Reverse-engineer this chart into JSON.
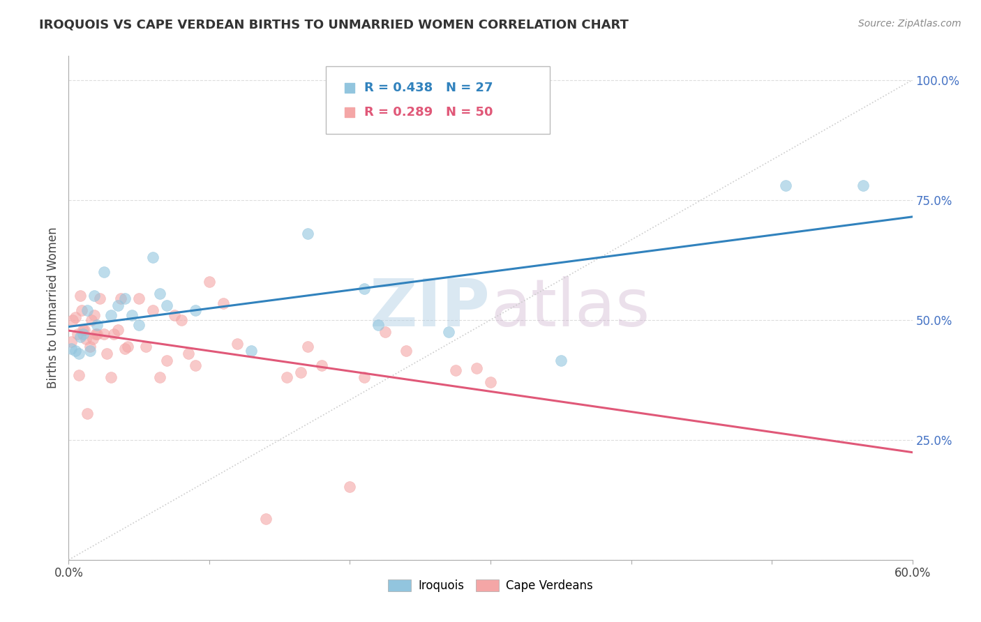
{
  "title": "IROQUOIS VS CAPE VERDEAN BIRTHS TO UNMARRIED WOMEN CORRELATION CHART",
  "source": "Source: ZipAtlas.com",
  "ylabel": "Births to Unmarried Women",
  "xlim": [
    0.0,
    0.6
  ],
  "ylim": [
    0.0,
    1.05
  ],
  "watermark_zip": "ZIP",
  "watermark_atlas": "atlas",
  "iroquois_color": "#92c5de",
  "capeverdean_color": "#f4a6a6",
  "iroquois_line_color": "#3182bd",
  "capeverdean_line_color": "#e05878",
  "diagonal_color": "#cccccc",
  "background_color": "#ffffff",
  "grid_color": "#dddddd",
  "iroquois_x": [
    0.002,
    0.005,
    0.007,
    0.008,
    0.01,
    0.013,
    0.015,
    0.018,
    0.02,
    0.025,
    0.03,
    0.035,
    0.04,
    0.045,
    0.05,
    0.06,
    0.065,
    0.07,
    0.09,
    0.13,
    0.17,
    0.21,
    0.22,
    0.27,
    0.35,
    0.51,
    0.565
  ],
  "iroquois_y": [
    0.44,
    0.435,
    0.43,
    0.465,
    0.47,
    0.52,
    0.435,
    0.55,
    0.49,
    0.6,
    0.51,
    0.53,
    0.545,
    0.51,
    0.49,
    0.63,
    0.555,
    0.53,
    0.52,
    0.435,
    0.68,
    0.565,
    0.49,
    0.475,
    0.415,
    0.78,
    0.78
  ],
  "capeverdean_x": [
    0.002,
    0.003,
    0.005,
    0.006,
    0.007,
    0.008,
    0.009,
    0.01,
    0.011,
    0.012,
    0.013,
    0.015,
    0.016,
    0.017,
    0.018,
    0.019,
    0.02,
    0.022,
    0.025,
    0.027,
    0.03,
    0.032,
    0.035,
    0.037,
    0.04,
    0.042,
    0.05,
    0.055,
    0.06,
    0.065,
    0.07,
    0.075,
    0.08,
    0.085,
    0.09,
    0.1,
    0.11,
    0.12,
    0.14,
    0.155,
    0.165,
    0.17,
    0.18,
    0.2,
    0.21,
    0.225,
    0.24,
    0.275,
    0.29,
    0.3
  ],
  "capeverdean_y": [
    0.455,
    0.5,
    0.505,
    0.47,
    0.385,
    0.55,
    0.52,
    0.48,
    0.48,
    0.46,
    0.305,
    0.445,
    0.5,
    0.46,
    0.51,
    0.47,
    0.47,
    0.545,
    0.47,
    0.43,
    0.38,
    0.47,
    0.48,
    0.545,
    0.44,
    0.445,
    0.545,
    0.445,
    0.52,
    0.38,
    0.415,
    0.51,
    0.5,
    0.43,
    0.405,
    0.58,
    0.535,
    0.45,
    0.085,
    0.38,
    0.39,
    0.445,
    0.405,
    0.152,
    0.38,
    0.475,
    0.435,
    0.395,
    0.4,
    0.37
  ],
  "xlabel_tick_positions": [
    0.0,
    0.1,
    0.2,
    0.3,
    0.4,
    0.5,
    0.6
  ],
  "xlabel_labels_show": {
    "0.0": "0.0%",
    "0.60": "60.0%"
  },
  "ylabel_tick_positions": [
    0.0,
    0.25,
    0.5,
    0.75,
    1.0
  ],
  "ylabel_labels": [
    "",
    "25.0%",
    "50.0%",
    "75.0%",
    "100.0%"
  ]
}
